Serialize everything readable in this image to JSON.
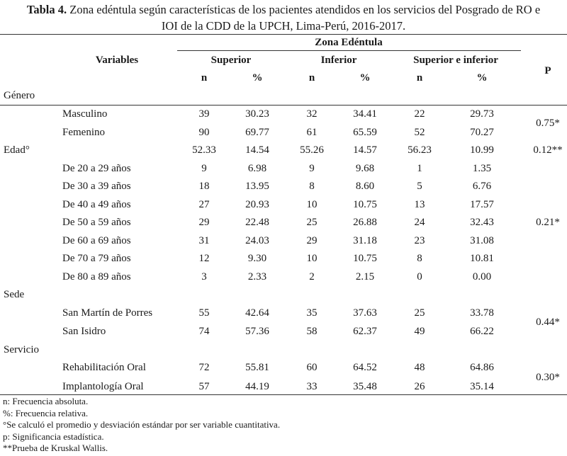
{
  "caption": {
    "label": "Tabla 4.",
    "line1": " Zona edéntula según características de los pacientes atendidos en los servicios del Posgrado de RO e",
    "line2": "IOI de la CDD de la UPCH, Lima-Perú, 2016-2017."
  },
  "header": {
    "variables": "Variables",
    "zona": "Zona Edéntula",
    "superior": "Superior",
    "inferior": "Inferior",
    "ambos": "Superior e inferior",
    "p": "P",
    "n1": "n",
    "pct1": "%",
    "n2": "n",
    "pct2": "%",
    "n3": "n",
    "pct3": "%"
  },
  "sections": {
    "genero": "Género",
    "edad": "Edad°",
    "sede": "Sede",
    "servicio": "Servicio"
  },
  "rows": [
    {
      "label": "Masculino",
      "v": [
        "39",
        "30.23",
        "32",
        "34.41",
        "22",
        "29.73"
      ]
    },
    {
      "label": "Femenino",
      "v": [
        "90",
        "69.77",
        "61",
        "65.59",
        "52",
        "70.27"
      ]
    },
    {
      "label": "",
      "v": [
        "52.33",
        "14.54",
        "55.26",
        "14.57",
        "56.23",
        "10.99"
      ]
    },
    {
      "label": "De 20 a 29 años",
      "v": [
        "9",
        "6.98",
        "9",
        "9.68",
        "1",
        "1.35"
      ]
    },
    {
      "label": "De 30 a 39 años",
      "v": [
        "18",
        "13.95",
        "8",
        "8.60",
        "5",
        "6.76"
      ]
    },
    {
      "label": "De 40 a 49 años",
      "v": [
        "27",
        "20.93",
        "10",
        "10.75",
        "13",
        "17.57"
      ]
    },
    {
      "label": "De 50 a 59 años",
      "v": [
        "29",
        "22.48",
        "25",
        "26.88",
        "24",
        "32.43"
      ]
    },
    {
      "label": "De 60 a 69 años",
      "v": [
        "31",
        "24.03",
        "29",
        "31.18",
        "23",
        "31.08"
      ]
    },
    {
      "label": "De 70 a 79 años",
      "v": [
        "12",
        "9.30",
        "10",
        "10.75",
        "8",
        "10.81"
      ]
    },
    {
      "label": "De 80 a 89 años",
      "v": [
        "3",
        "2.33",
        "2",
        "2.15",
        "0",
        "0.00"
      ]
    },
    {
      "label": "San Martín de Porres",
      "v": [
        "55",
        "42.64",
        "35",
        "37.63",
        "25",
        "33.78"
      ]
    },
    {
      "label": "San Isidro",
      "v": [
        "74",
        "57.36",
        "58",
        "62.37",
        "49",
        "66.22"
      ]
    },
    {
      "label": "Rehabilitación Oral",
      "v": [
        "72",
        "55.81",
        "60",
        "64.52",
        "48",
        "64.86"
      ]
    },
    {
      "label": "Implantología Oral",
      "v": [
        "57",
        "44.19",
        "33",
        "35.48",
        "26",
        "35.14"
      ]
    }
  ],
  "pvalues": {
    "genero": "0.75*",
    "edad": "0.12**",
    "edad_groups": "0.21*",
    "sede": "0.44*",
    "servicio": "0.30*"
  },
  "notes": [
    "n: Frecuencia absoluta.",
    "%: Frecuencia relativa.",
    "°Se calculó el promedio y desviación estándar por ser variable cuantitativa.",
    "p: Significancia estadística.",
    "**Prueba de Kruskal Wallis."
  ]
}
